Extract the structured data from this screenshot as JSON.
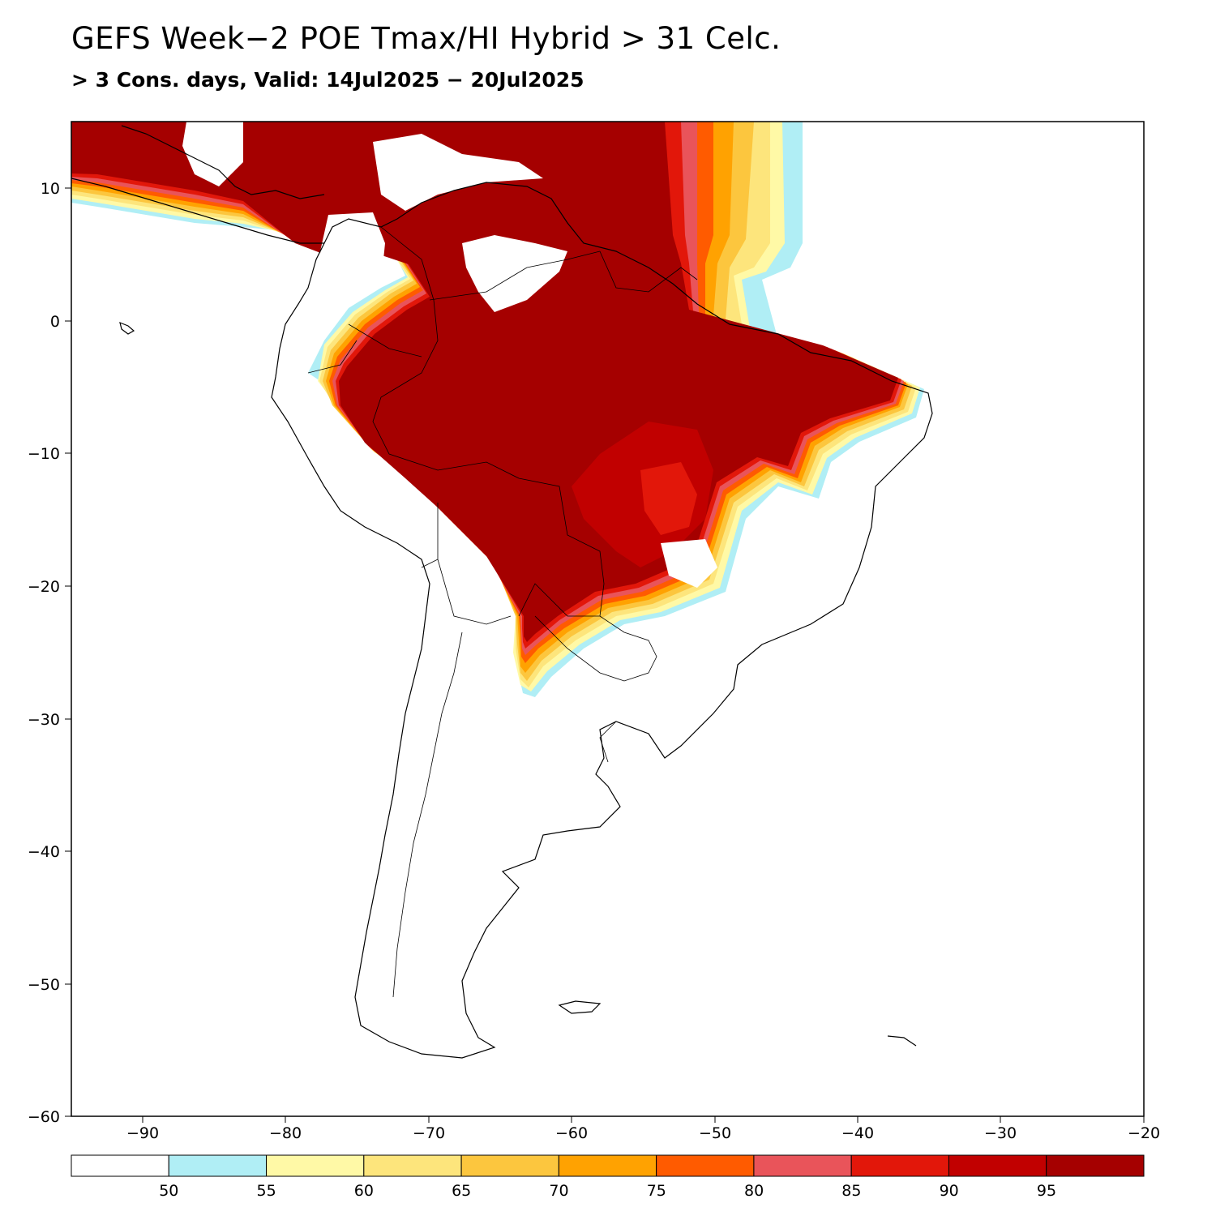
{
  "header": {
    "title": "GEFS Week−2 POE Tmax/HI Hybrid > 31 Celc.",
    "subtitle": "> 3 Cons. days, Valid: 14Jul2025 − 20Jul2025"
  },
  "map": {
    "lon_range": [
      -95,
      -20
    ],
    "lat_range": [
      -60,
      15
    ],
    "lat_ticks": [
      "10",
      "0",
      "−10",
      "−20",
      "−30",
      "−40",
      "−50",
      "−60"
    ],
    "lon_ticks": [
      "−90",
      "−80",
      "−70",
      "−60",
      "−50",
      "−40",
      "−30",
      "−20"
    ]
  },
  "legend": {
    "colors": [
      "#ffffff",
      "#b0eef5",
      "#fff9a6",
      "#fde57c",
      "#fcc63e",
      "#ffa201",
      "#ff5b00",
      "#e9545a",
      "#e2170a",
      "#c10000",
      "#a50000"
    ],
    "labels": [
      "50",
      "55",
      "60",
      "65",
      "70",
      "75",
      "80",
      "85",
      "90",
      "95"
    ]
  }
}
